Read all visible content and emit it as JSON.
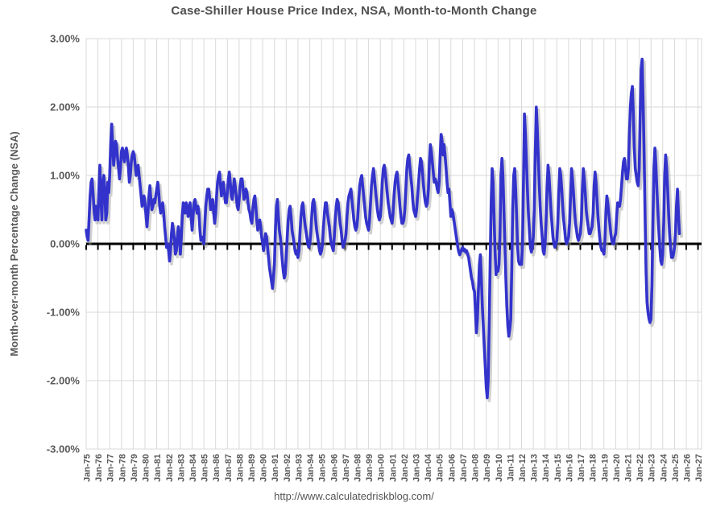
{
  "chart_data": {
    "type": "line",
    "title": "Case-Shiller House Price Index, NSA, Month-to-Month Change",
    "ylabel": "Month-over-month Percentage Change (NSA)",
    "source": "http://www.calculatedriskblog.com/",
    "series_name": "Case-Shiller MoM percentage change (NSA)",
    "line_color": "#3333cc",
    "shadow_color": "#9a9a9a",
    "grid_color": "#d9d9d9",
    "axis_color": "#000000",
    "text_color": "#595959",
    "grid": true,
    "legend": "none",
    "ylim": [
      -3,
      3
    ],
    "xlim_years": [
      1975,
      2027.3
    ],
    "y_ticks": [
      "3.00%",
      "2.00%",
      "1.00%",
      "0.00%",
      "-1.00%",
      "-2.00%",
      "-3.00%"
    ],
    "y_tick_values": [
      3,
      2,
      1,
      0,
      -1,
      -2,
      -3
    ],
    "x_tick_labels": [
      "Jan-75",
      "Jan-76",
      "Jan-77",
      "Jan-78",
      "Jan-79",
      "Jan-80",
      "Jan-81",
      "Jan-82",
      "Jan-83",
      "Jan-84",
      "Jan-85",
      "Jan-86",
      "Jan-87",
      "Jan-88",
      "Jan-89",
      "Jan-90",
      "Jan-91",
      "Jan-92",
      "Jan-93",
      "Jan-94",
      "Jan-95",
      "Jan-96",
      "Jan-97",
      "Jan-98",
      "Jan-99",
      "Jan-00",
      "Jan-01",
      "Jan-02",
      "Jan-03",
      "Jan-04",
      "Jan-05",
      "Jan-06",
      "Jan-07",
      "Jan-08",
      "Jan-09",
      "Jan-10",
      "Jan-11",
      "Jan-12",
      "Jan-13",
      "Jan-14",
      "Jan-15",
      "Jan-16",
      "Jan-17",
      "Jan-18",
      "Jan-19",
      "Jan-20",
      "Jan-21",
      "Jan-22",
      "Jan-23",
      "Jan-24",
      "Jan-25",
      "Jan-26",
      "Jan-27"
    ],
    "start": "1975-01",
    "end": "2025-06",
    "frequency": "monthly",
    "values": [
      0.2,
      0.1,
      0.05,
      0.4,
      0.7,
      0.9,
      0.95,
      0.75,
      0.5,
      0.35,
      0.55,
      0.45,
      0.35,
      0.8,
      1.15,
      0.65,
      0.35,
      0.9,
      1.0,
      0.8,
      0.35,
      0.45,
      0.9,
      0.75,
      1.0,
      1.45,
      1.75,
      1.45,
      1.15,
      1.3,
      1.5,
      1.45,
      1.25,
      1.1,
      0.95,
      1.1,
      1.35,
      1.4,
      1.3,
      1.2,
      1.35,
      1.4,
      1.3,
      1.15,
      0.9,
      1.0,
      1.2,
      1.3,
      1.35,
      1.3,
      1.15,
      1.0,
      1.1,
      1.15,
      1.0,
      0.85,
      0.7,
      0.55,
      0.6,
      0.7,
      0.6,
      0.4,
      0.25,
      0.45,
      0.7,
      0.85,
      0.65,
      0.5,
      0.55,
      0.65,
      0.6,
      0.7,
      0.8,
      0.9,
      0.75,
      0.55,
      0.45,
      0.55,
      0.6,
      0.45,
      0.25,
      0.1,
      -0.05,
      0.0,
      -0.1,
      -0.25,
      -0.1,
      0.15,
      0.3,
      0.2,
      0.05,
      -0.15,
      -0.1,
      0.1,
      0.25,
      0.1,
      -0.15,
      0.1,
      0.4,
      0.6,
      0.5,
      0.45,
      0.6,
      0.55,
      0.4,
      0.5,
      0.6,
      0.4,
      0.2,
      0.4,
      0.6,
      0.65,
      0.55,
      0.45,
      0.55,
      0.45,
      0.2,
      0.05,
      0.1,
      0.05,
      0.0,
      0.3,
      0.55,
      0.7,
      0.8,
      0.8,
      0.65,
      0.5,
      0.6,
      0.65,
      0.45,
      0.3,
      0.45,
      0.7,
      0.9,
      1.0,
      1.05,
      0.85,
      0.7,
      0.85,
      0.9,
      0.75,
      0.6,
      0.6,
      0.75,
      0.95,
      1.05,
      0.9,
      0.7,
      0.65,
      0.8,
      0.95,
      0.85,
      0.7,
      0.55,
      0.5,
      0.65,
      0.85,
      0.95,
      0.95,
      0.8,
      0.65,
      0.7,
      0.8,
      0.75,
      0.6,
      0.5,
      0.45,
      0.35,
      0.3,
      0.5,
      0.65,
      0.7,
      0.55,
      0.35,
      0.2,
      0.3,
      0.35,
      0.25,
      0.1,
      0.0,
      -0.1,
      0.05,
      0.15,
      0.1,
      -0.05,
      -0.2,
      -0.35,
      -0.45,
      -0.55,
      -0.65,
      -0.5,
      -0.3,
      0.2,
      0.55,
      0.65,
      0.4,
      0.2,
      0.1,
      -0.05,
      -0.25,
      -0.4,
      -0.5,
      -0.45,
      -0.2,
      0.1,
      0.35,
      0.5,
      0.55,
      0.4,
      0.2,
      0.1,
      0.0,
      -0.1,
      -0.15,
      -0.1,
      -0.2,
      -0.1,
      0.15,
      0.4,
      0.55,
      0.6,
      0.45,
      0.3,
      0.2,
      0.1,
      0.0,
      -0.05,
      0.0,
      0.15,
      0.4,
      0.6,
      0.65,
      0.55,
      0.35,
      0.2,
      0.1,
      0.0,
      -0.1,
      -0.15,
      -0.1,
      0.0,
      0.25,
      0.45,
      0.6,
      0.6,
      0.45,
      0.35,
      0.25,
      0.1,
      0.0,
      -0.05,
      -0.1,
      0.1,
      0.35,
      0.55,
      0.65,
      0.6,
      0.45,
      0.3,
      0.2,
      0.05,
      -0.05,
      0.0,
      0.05,
      0.15,
      0.4,
      0.6,
      0.7,
      0.75,
      0.8,
      0.65,
      0.5,
      0.35,
      0.25,
      0.2,
      0.25,
      0.4,
      0.65,
      0.85,
      0.95,
      1.0,
      0.85,
      0.7,
      0.55,
      0.4,
      0.3,
      0.25,
      0.2,
      0.35,
      0.6,
      0.85,
      1.0,
      1.1,
      0.95,
      0.8,
      0.65,
      0.5,
      0.4,
      0.35,
      0.4,
      0.6,
      0.9,
      1.1,
      1.15,
      1.05,
      0.9,
      0.75,
      0.6,
      0.5,
      0.4,
      0.35,
      0.3,
      0.45,
      0.7,
      0.9,
      1.0,
      1.05,
      0.9,
      0.75,
      0.55,
      0.4,
      0.3,
      0.3,
      0.35,
      0.5,
      0.8,
      1.1,
      1.25,
      1.3,
      1.15,
      1.0,
      0.85,
      0.65,
      0.5,
      0.45,
      0.4,
      0.5,
      0.7,
      0.9,
      1.1,
      1.25,
      1.2,
      1.05,
      0.85,
      0.7,
      0.6,
      0.55,
      0.6,
      0.8,
      1.2,
      1.45,
      1.35,
      1.2,
      1.05,
      0.9,
      0.95,
      0.9,
      0.8,
      0.75,
      0.9,
      1.3,
      1.6,
      1.5,
      1.3,
      1.45,
      1.3,
      1.1,
      0.9,
      0.75,
      0.8,
      0.6,
      0.4,
      0.5,
      0.45,
      0.35,
      0.25,
      0.15,
      0.05,
      -0.05,
      -0.12,
      -0.16,
      -0.12,
      -0.08,
      -0.05,
      -0.1,
      -0.08,
      -0.12,
      -0.1,
      -0.15,
      -0.2,
      -0.3,
      -0.4,
      -0.5,
      -0.55,
      -0.65,
      -0.7,
      -1.0,
      -1.3,
      -1.1,
      -0.7,
      -0.3,
      -0.16,
      -0.5,
      -0.9,
      -1.2,
      -1.5,
      -1.8,
      -2.1,
      -2.25,
      -2.0,
      -1.2,
      -0.3,
      0.6,
      1.1,
      0.9,
      0.4,
      -0.1,
      -0.45,
      -0.35,
      -0.4,
      -0.3,
      0.1,
      1.0,
      1.25,
      1.0,
      0.5,
      0.0,
      -0.5,
      -0.9,
      -1.2,
      -1.35,
      -1.25,
      -1.1,
      -0.4,
      0.5,
      1.0,
      1.1,
      0.8,
      0.4,
      -0.05,
      -0.25,
      -0.3,
      -0.3,
      -0.3,
      0.0,
      0.9,
      1.9,
      1.6,
      1.2,
      0.8,
      0.45,
      0.2,
      -0.05,
      -0.12,
      -0.05,
      0.1,
      0.5,
      1.3,
      2.0,
      1.7,
      1.3,
      0.9,
      0.55,
      0.3,
      0.1,
      -0.1,
      -0.15,
      0.0,
      0.3,
      0.8,
      1.15,
      1.0,
      0.75,
      0.5,
      0.3,
      0.1,
      0.0,
      -0.05,
      0.0,
      0.05,
      0.3,
      0.75,
      1.1,
      1.0,
      0.8,
      0.55,
      0.35,
      0.2,
      0.05,
      0.0,
      0.05,
      0.1,
      0.3,
      0.7,
      1.1,
      0.95,
      0.75,
      0.5,
      0.3,
      0.2,
      0.1,
      0.05,
      0.1,
      0.15,
      0.35,
      0.8,
      1.1,
      0.95,
      0.75,
      0.5,
      0.35,
      0.25,
      0.15,
      0.15,
      0.2,
      0.25,
      0.45,
      0.85,
      1.05,
      0.9,
      0.65,
      0.4,
      0.2,
      0.05,
      -0.05,
      -0.1,
      -0.1,
      -0.15,
      0.05,
      0.45,
      0.7,
      0.6,
      0.45,
      0.3,
      0.15,
      0.05,
      0.0,
      0.0,
      0.1,
      0.15,
      0.4,
      0.6,
      0.55,
      0.55,
      0.65,
      0.85,
      1.05,
      1.2,
      1.25,
      1.1,
      0.95,
      0.95,
      1.1,
      1.6,
      2.0,
      2.2,
      2.3,
      1.9,
      1.4,
      1.1,
      1.0,
      0.9,
      0.85,
      1.1,
      1.9,
      2.55,
      2.7,
      2.1,
      1.3,
      0.4,
      -0.4,
      -0.85,
      -1.0,
      -1.1,
      -1.15,
      -1.1,
      -0.6,
      0.3,
      1.1,
      1.4,
      1.15,
      0.8,
      0.5,
      0.2,
      -0.05,
      -0.25,
      -0.3,
      -0.15,
      0.3,
      1.0,
      1.3,
      1.1,
      0.8,
      0.45,
      0.15,
      -0.05,
      -0.2,
      -0.2,
      -0.15,
      -0.05,
      0.15,
      0.55,
      0.8,
      0.45,
      0.15
    ]
  }
}
